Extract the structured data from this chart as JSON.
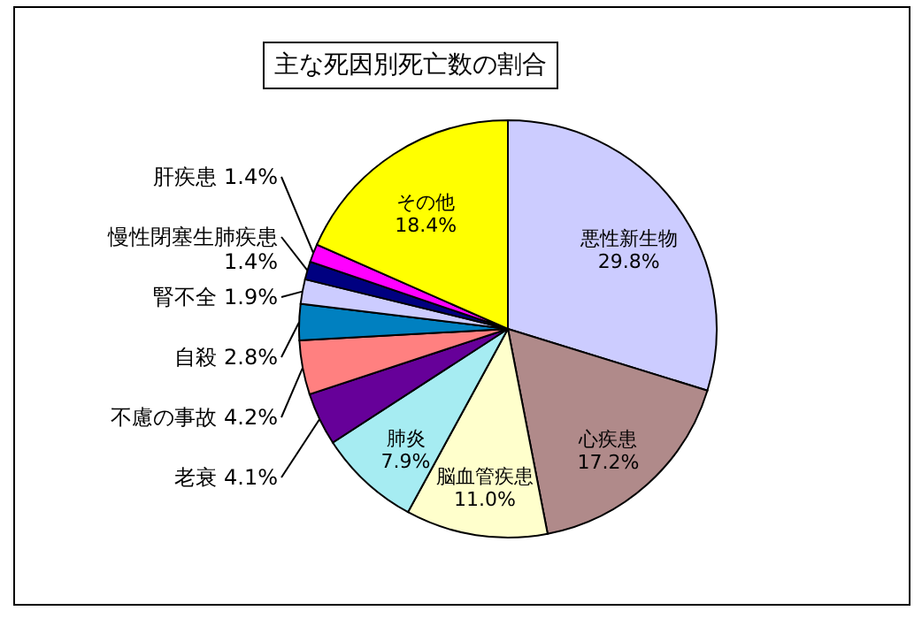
{
  "chart_data": {
    "type": "pie",
    "title": "主な死因別死亡数の割合",
    "categories": [
      "悪性新生物",
      "心疾患",
      "脳血管疾患",
      "肺炎",
      "老衰",
      "不慮の事故",
      "自殺",
      "腎不全",
      "慢性閉塞生肺疾患",
      "肝疾患",
      "その他"
    ],
    "values": [
      29.8,
      17.2,
      11.0,
      7.9,
      4.1,
      4.2,
      2.8,
      1.9,
      1.4,
      1.4,
      18.4
    ],
    "colors": [
      "#ccccff",
      "#b08a8a",
      "#ffffcc",
      "#a6ecf2",
      "#660099",
      "#ff8080",
      "#0080c0",
      "#ccccff",
      "#000080",
      "#ff00ff",
      "#ffff00"
    ],
    "value_labels": [
      "29.8%",
      "17.2%",
      "11.0%",
      "7.9%",
      "4.1%",
      "4.2%",
      "2.8%",
      "1.9%",
      "1.4%",
      "1.4%",
      "18.4%"
    ]
  }
}
